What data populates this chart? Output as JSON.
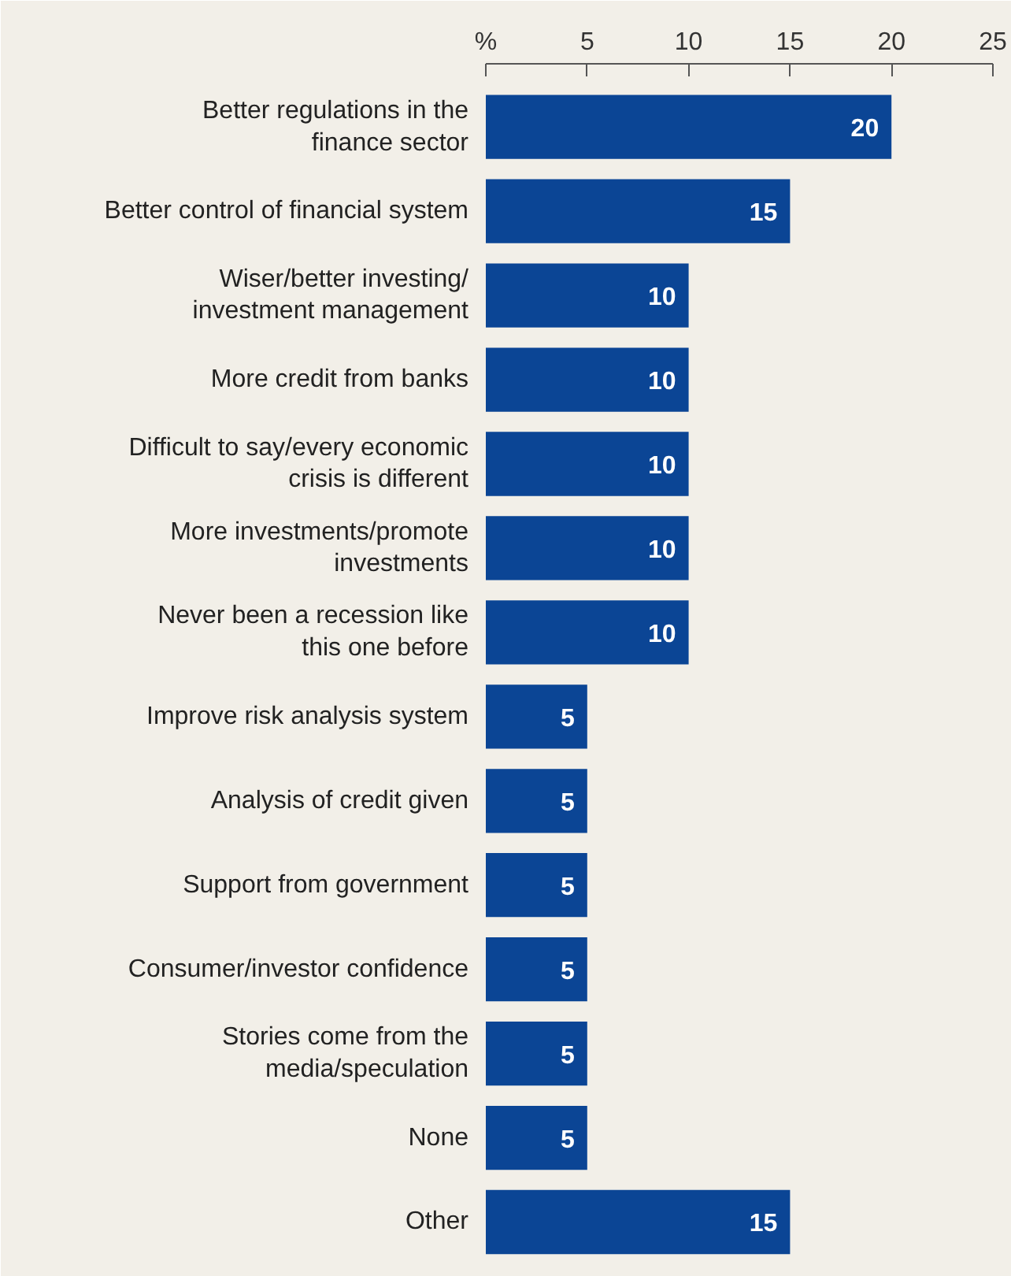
{
  "chart_data": {
    "type": "bar",
    "orientation": "horizontal",
    "categories": [
      "Better regulations in the\nfinance sector",
      "Better control of financial system",
      "Wiser/better investing/\ninvestment management",
      "More credit from banks",
      "Difficult to say/every economic\ncrisis is different",
      "More investments/promote\ninvestments",
      "Never been a recession like\nthis one before",
      "Improve risk analysis system",
      "Analysis of credit given",
      "Support from government",
      "Consumer/investor confidence",
      "Stories come from the\nmedia/speculation",
      "None",
      "Other"
    ],
    "values": [
      20,
      15,
      10,
      10,
      10,
      10,
      10,
      5,
      5,
      5,
      5,
      5,
      5,
      15
    ],
    "color": "#0b4595",
    "data_labels": true,
    "grid": false,
    "xlim": [
      0,
      25
    ],
    "xticks": [
      {
        "value": 0,
        "label": "%"
      },
      5,
      10,
      15,
      20,
      25
    ]
  }
}
